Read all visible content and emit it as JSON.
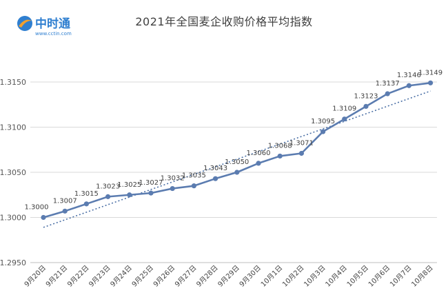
{
  "brand": {
    "name": "中时通",
    "url": "www.cctin.com"
  },
  "colors": {
    "line": "#5b7cb0",
    "trend": "#4a6fa5",
    "grid": "#d9d9d9",
    "logo": "#2f7fd0",
    "logo_accent": "#f0a030"
  },
  "chart_data": {
    "type": "line",
    "title": "2021年全国麦企收购价格平均指数",
    "xlabel": "",
    "ylabel": "",
    "categories": [
      "9月20日",
      "9月21日",
      "9月22日",
      "9月23日",
      "9月24日",
      "9月25日",
      "9月26日",
      "9月27日",
      "9月28日",
      "9月29日",
      "9月30日",
      "10月1日",
      "10月2日",
      "10月3日",
      "10月4日",
      "10月5日",
      "10月6日",
      "10月7日",
      "10月8日"
    ],
    "series": [
      {
        "values": [
          1.3,
          1.3007,
          1.3015,
          1.3023,
          1.3025,
          1.3027,
          1.3032,
          1.3035,
          1.3043,
          1.305,
          1.306,
          1.3068,
          1.3071,
          1.3095,
          1.3109,
          1.3123,
          1.3137,
          1.3146,
          1.3149
        ],
        "labels": [
          "1.3000",
          "1.3007",
          "1.3015",
          "1.3023",
          "1.3025",
          "1.3027",
          "1.3032",
          "1.3035",
          "1.3043",
          "1.3050",
          "1.3060",
          "1.3068",
          "1.3071",
          "1.3095",
          "1.3109",
          "1.3123",
          "1.3137",
          "1.3146",
          "1.3149"
        ]
      }
    ],
    "trendline": {
      "style": "dotted",
      "start": 1.2989,
      "end": 1.314
    },
    "ylim": [
      1.295,
      1.315
    ],
    "yticks": [
      "1.2950",
      "1.3000",
      "1.3050",
      "1.3100",
      "1.3150"
    ],
    "grid": true,
    "legend": "none"
  }
}
